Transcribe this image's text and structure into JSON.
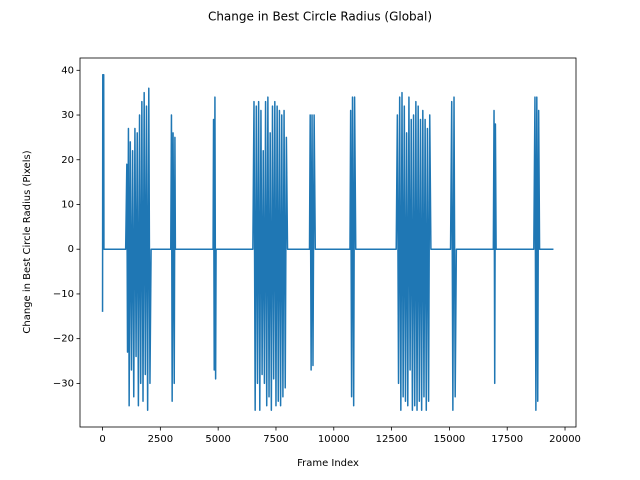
{
  "chart_data": {
    "type": "line",
    "title": "Change in Best Circle Radius (Global)",
    "x_label": "Frame Index",
    "y_label": "Change in Best Circle Radius (Pixels)",
    "color": "#1f77b4",
    "xlim": [
      -975,
      20475
    ],
    "ylim": [
      -39.75,
      42.75
    ],
    "xticks": [
      0,
      2500,
      5000,
      7500,
      10000,
      12500,
      15000,
      17500,
      20000
    ],
    "yticks": [
      {
        "value": -30,
        "label": "−30"
      },
      {
        "value": -20,
        "label": "−20"
      },
      {
        "value": -10,
        "label": "−10"
      },
      0,
      10,
      20,
      30,
      40
    ],
    "x": [
      0,
      10,
      50,
      60,
      1000,
      1050,
      1080,
      1120,
      1150,
      1200,
      1250,
      1300,
      1350,
      1400,
      1450,
      1500,
      1550,
      1600,
      1650,
      1700,
      1750,
      1800,
      1850,
      1900,
      1950,
      2000,
      2050,
      2100,
      2950,
      2980,
      3010,
      3050,
      3100,
      3130,
      3150,
      4780,
      4800,
      4830,
      4860,
      4890,
      4910,
      6500,
      6550,
      6600,
      6650,
      6700,
      6750,
      6800,
      6850,
      6900,
      6950,
      7000,
      7050,
      7100,
      7150,
      7200,
      7250,
      7300,
      7350,
      7400,
      7450,
      7500,
      7550,
      7600,
      7650,
      7700,
      7750,
      7800,
      7850,
      7900,
      7950,
      8000,
      8950,
      8980,
      9020,
      9060,
      9100,
      9150,
      9200,
      10700,
      10730,
      10770,
      10810,
      10860,
      10900,
      10950,
      12700,
      12750,
      12800,
      12850,
      12900,
      12950,
      13000,
      13050,
      13100,
      13150,
      13200,
      13250,
      13300,
      13350,
      13400,
      13450,
      13500,
      13550,
      13600,
      13650,
      13700,
      13750,
      13800,
      13850,
      13900,
      13950,
      14000,
      14050,
      14100,
      14150,
      14200,
      15050,
      15100,
      15150,
      15200,
      15250,
      15300,
      16900,
      16930,
      16960,
      16990,
      17020,
      18650,
      18700,
      18740,
      18780,
      18820,
      18860,
      18900,
      19500
    ],
    "values": [
      -14,
      39,
      39,
      0,
      0,
      19,
      -23,
      27,
      -35,
      24,
      -27,
      22,
      -33,
      27,
      -24,
      26,
      -35,
      30,
      -30,
      33,
      -34,
      35,
      -28,
      32,
      -36,
      36,
      -30,
      0,
      0,
      30,
      -34,
      26,
      -30,
      25,
      0,
      0,
      29,
      -27,
      34,
      -29,
      0,
      0,
      33,
      -36,
      32,
      -30,
      33,
      -36,
      31,
      -28,
      22,
      -30,
      33,
      -35,
      34,
      -33,
      26,
      -36,
      32,
      -29,
      33,
      -35,
      32,
      -34,
      31,
      -35,
      30,
      -33,
      31,
      -31,
      25,
      0,
      0,
      30,
      -27,
      30,
      -26,
      30,
      0,
      0,
      31,
      -33,
      34,
      -35,
      34,
      0,
      0,
      30,
      -30,
      34,
      -36,
      35,
      -33,
      32,
      -34,
      26,
      -35,
      34,
      -27,
      29,
      -36,
      30,
      -35,
      33,
      -36,
      32,
      -34,
      29,
      -36,
      31,
      -33,
      29,
      -36,
      27,
      -34,
      30,
      0,
      0,
      33,
      -36,
      34,
      -33,
      0,
      0,
      31,
      -30,
      28,
      0,
      0,
      34,
      -36,
      34,
      -34,
      31,
      0,
      0
    ]
  }
}
